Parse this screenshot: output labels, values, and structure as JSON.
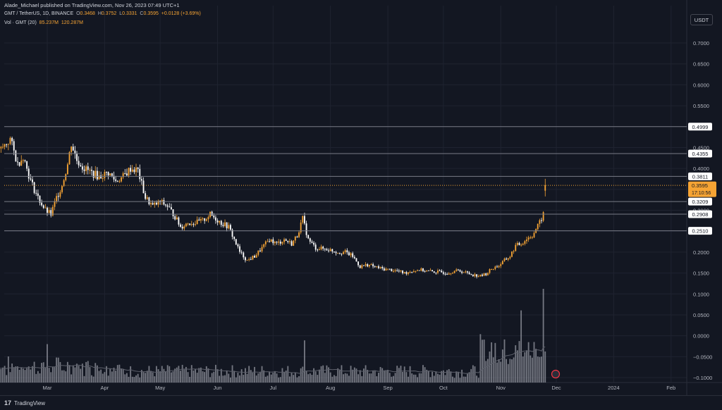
{
  "header": {
    "publisher_line": "Alade_Michael published on TradingView.com, Nov 26, 2023 07:49 UTC+1",
    "symbol": "GMT / TetherUS, 1D, BINANCE",
    "open_label": "O",
    "open": "0.3468",
    "high_label": "H",
    "high": "0.3752",
    "low_label": "L",
    "low": "0.3331",
    "close_label": "C",
    "close": "0.3595",
    "change": "+0.0128 (+3.69%)",
    "volume_label": "Vol · GMT (20)",
    "volume": "85.237M",
    "volume_ma": "120.287M"
  },
  "currency_button": "USDT",
  "footer": {
    "logo_mark": "17",
    "logo_text": "TradingView"
  },
  "colors": {
    "background": "#131722",
    "up": "#f6a434",
    "down": "#ffffff",
    "grid": "#1f2330",
    "level_line": "#787b86",
    "price_tag": "#f6a434",
    "volume": "#9598a1",
    "volume_ma": "#5d606b"
  },
  "chart_data": {
    "type": "candlestick",
    "y_axis": {
      "min": -0.1,
      "max": 0.7,
      "step": 0.05,
      "tick_labels": [
        "0.7000",
        "0.6500",
        "0.6000",
        "0.5500",
        "0.5000",
        "0.4500",
        "0.4000",
        "0.3500",
        "0.3000",
        "0.2500",
        "0.2000",
        "0.1500",
        "0.1000",
        "0.0500",
        "0.0000",
        "−0.0500",
        "−0.1000"
      ]
    },
    "x_axis": {
      "labels": [
        "Mar",
        "Apr",
        "May",
        "Jun",
        "Jul",
        "Aug",
        "Sep",
        "Oct",
        "Nov",
        "Dec",
        "2024",
        "Feb"
      ],
      "label_dates": [
        "2023-03-01",
        "2023-04-01",
        "2023-05-01",
        "2023-06-01",
        "2023-07-01",
        "2023-08-01",
        "2023-09-01",
        "2023-10-01",
        "2023-11-01",
        "2023-12-01",
        "2024-01-01",
        "2024-02-01"
      ]
    },
    "price_path": [
      [
        "2023-01-28",
        0.49
      ],
      [
        "2023-02-01",
        0.43
      ],
      [
        "2023-02-05",
        0.45
      ],
      [
        "2023-02-09",
        0.47
      ],
      [
        "2023-02-13",
        0.41
      ],
      [
        "2023-02-16",
        0.43
      ],
      [
        "2023-02-20",
        0.37
      ],
      [
        "2023-02-24",
        0.33
      ],
      [
        "2023-02-28",
        0.3
      ],
      [
        "2023-03-03",
        0.29
      ],
      [
        "2023-03-06",
        0.33
      ],
      [
        "2023-03-09",
        0.36
      ],
      [
        "2023-03-12",
        0.41
      ],
      [
        "2023-03-14",
        0.46
      ],
      [
        "2023-03-17",
        0.42
      ],
      [
        "2023-03-21",
        0.4
      ],
      [
        "2023-03-25",
        0.39
      ],
      [
        "2023-03-29",
        0.38
      ],
      [
        "2023-04-03",
        0.39
      ],
      [
        "2023-04-07",
        0.37
      ],
      [
        "2023-04-11",
        0.38
      ],
      [
        "2023-04-15",
        0.4
      ],
      [
        "2023-04-19",
        0.395
      ],
      [
        "2023-04-23",
        0.33
      ],
      [
        "2023-04-27",
        0.31
      ],
      [
        "2023-05-01",
        0.32
      ],
      [
        "2023-05-05",
        0.31
      ],
      [
        "2023-05-09",
        0.285
      ],
      [
        "2023-05-12",
        0.26
      ],
      [
        "2023-05-16",
        0.27
      ],
      [
        "2023-05-20",
        0.27
      ],
      [
        "2023-05-24",
        0.275
      ],
      [
        "2023-05-28",
        0.29
      ],
      [
        "2023-05-31",
        0.28
      ],
      [
        "2023-06-03",
        0.27
      ],
      [
        "2023-06-07",
        0.26
      ],
      [
        "2023-06-10",
        0.23
      ],
      [
        "2023-06-13",
        0.2
      ],
      [
        "2023-06-17",
        0.18
      ],
      [
        "2023-06-21",
        0.19
      ],
      [
        "2023-06-25",
        0.21
      ],
      [
        "2023-06-29",
        0.23
      ],
      [
        "2023-07-03",
        0.22
      ],
      [
        "2023-07-07",
        0.23
      ],
      [
        "2023-07-11",
        0.22
      ],
      [
        "2023-07-14",
        0.24
      ],
      [
        "2023-07-17",
        0.28
      ],
      [
        "2023-07-20",
        0.23
      ],
      [
        "2023-07-24",
        0.21
      ],
      [
        "2023-07-28",
        0.208
      ],
      [
        "2023-08-01",
        0.205
      ],
      [
        "2023-08-05",
        0.2
      ],
      [
        "2023-08-09",
        0.2
      ],
      [
        "2023-08-13",
        0.19
      ],
      [
        "2023-08-17",
        0.165
      ],
      [
        "2023-08-21",
        0.17
      ],
      [
        "2023-08-25",
        0.165
      ],
      [
        "2023-08-29",
        0.16
      ],
      [
        "2023-09-02",
        0.158
      ],
      [
        "2023-09-06",
        0.155
      ],
      [
        "2023-09-10",
        0.15
      ],
      [
        "2023-09-14",
        0.155
      ],
      [
        "2023-09-18",
        0.158
      ],
      [
        "2023-09-22",
        0.155
      ],
      [
        "2023-09-26",
        0.153
      ],
      [
        "2023-09-30",
        0.152
      ],
      [
        "2023-10-03",
        0.15
      ],
      [
        "2023-10-07",
        0.155
      ],
      [
        "2023-10-10",
        0.155
      ],
      [
        "2023-10-14",
        0.15
      ],
      [
        "2023-10-18",
        0.145
      ],
      [
        "2023-10-21",
        0.143
      ],
      [
        "2023-10-24",
        0.148
      ],
      [
        "2023-10-27",
        0.16
      ],
      [
        "2023-10-31",
        0.168
      ],
      [
        "2023-11-03",
        0.18
      ],
      [
        "2023-11-06",
        0.19
      ],
      [
        "2023-11-09",
        0.215
      ],
      [
        "2023-11-12",
        0.22
      ],
      [
        "2023-11-15",
        0.232
      ],
      [
        "2023-11-18",
        0.24
      ],
      [
        "2023-11-20",
        0.255
      ],
      [
        "2023-11-22",
        0.27
      ],
      [
        "2023-11-24",
        0.29
      ],
      [
        "2023-11-25",
        0.3468
      ],
      [
        "2023-11-26",
        0.3595
      ]
    ],
    "last_candle": {
      "date": "2023-11-26",
      "open": 0.3468,
      "high": 0.3752,
      "low": 0.3331,
      "close": 0.3595
    },
    "horizontal_levels": [
      {
        "value": 0.4999,
        "label": "0.4999"
      },
      {
        "value": 0.4355,
        "label": "0.4355"
      },
      {
        "value": 0.3811,
        "label": "0.3811"
      },
      {
        "value": 0.3209,
        "label": "0.3209"
      },
      {
        "value": 0.2908,
        "label": "0.2908"
      },
      {
        "value": 0.251,
        "label": "0.2510"
      }
    ],
    "current_price": {
      "value": 0.3595,
      "label": "0.3595",
      "countdown": "17:10:56"
    },
    "volume_peaks": [
      {
        "date": "2023-11-24",
        "value_fraction": 1.0
      },
      {
        "date": "2023-11-12",
        "value_fraction": 0.77
      },
      {
        "date": "2023-07-18",
        "value_fraction": 0.45
      },
      {
        "date": "2023-03-01",
        "value_fraction": 0.41
      }
    ],
    "legend": "top-left",
    "grid": true
  }
}
